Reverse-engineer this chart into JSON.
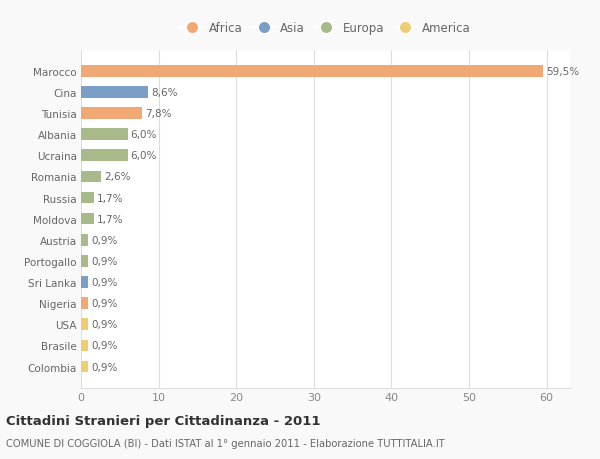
{
  "countries": [
    "Marocco",
    "Cina",
    "Tunisia",
    "Albania",
    "Ucraina",
    "Romania",
    "Russia",
    "Moldova",
    "Austria",
    "Portogallo",
    "Sri Lanka",
    "Nigeria",
    "USA",
    "Brasile",
    "Colombia"
  ],
  "values": [
    59.5,
    8.6,
    7.8,
    6.0,
    6.0,
    2.6,
    1.7,
    1.7,
    0.9,
    0.9,
    0.9,
    0.9,
    0.9,
    0.9,
    0.9
  ],
  "labels": [
    "59,5%",
    "8,6%",
    "7,8%",
    "6,0%",
    "6,0%",
    "2,6%",
    "1,7%",
    "1,7%",
    "0,9%",
    "0,9%",
    "0,9%",
    "0,9%",
    "0,9%",
    "0,9%",
    "0,9%"
  ],
  "continent": [
    "Africa",
    "Asia",
    "Africa",
    "Europa",
    "Europa",
    "Europa",
    "Europa",
    "Europa",
    "Europa",
    "Europa",
    "Asia",
    "Africa",
    "America",
    "America",
    "America"
  ],
  "colors": {
    "Africa": "#F0A875",
    "Asia": "#7B9EC7",
    "Europa": "#A8BA8A",
    "America": "#F0CC75"
  },
  "legend_order": [
    "Africa",
    "Asia",
    "Europa",
    "America"
  ],
  "xlim": [
    0,
    63
  ],
  "xticks": [
    0,
    10,
    20,
    30,
    40,
    50,
    60
  ],
  "title": "Cittadini Stranieri per Cittadinanza - 2011",
  "subtitle": "COMUNE DI COGGIOLA (BI) - Dati ISTAT al 1° gennaio 2011 - Elaborazione TUTTITALIA.IT",
  "background_color": "#f9f9f9",
  "bar_background": "#ffffff",
  "grid_color": "#dddddd"
}
